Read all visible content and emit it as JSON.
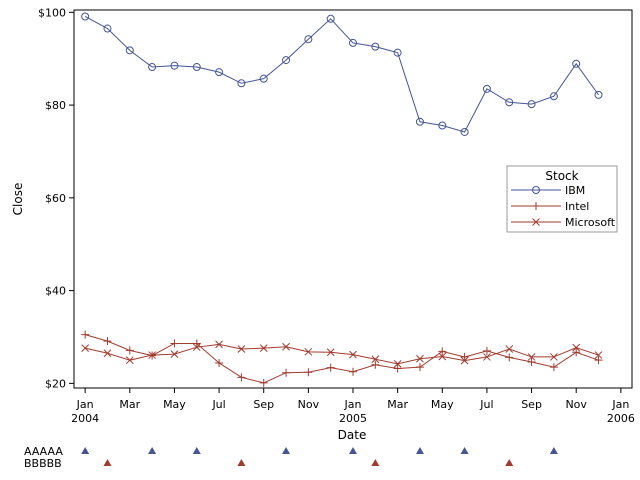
{
  "chart_data": {
    "type": "line",
    "xlabel": "Date",
    "ylabel": "Close",
    "ylim": [
      19,
      100.5
    ],
    "yticks": [
      {
        "value": 20,
        "label": "$20"
      },
      {
        "value": 40,
        "label": "$40"
      },
      {
        "value": 60,
        "label": "$60"
      },
      {
        "value": 80,
        "label": "$80"
      },
      {
        "value": 100,
        "label": "$100"
      }
    ],
    "xlim": [
      -0.5,
      24.5
    ],
    "xticks": [
      {
        "pos": 0,
        "label": "Jan",
        "year": "2004"
      },
      {
        "pos": 2,
        "label": "Mar",
        "year": ""
      },
      {
        "pos": 4,
        "label": "May",
        "year": ""
      },
      {
        "pos": 6,
        "label": "Jul",
        "year": ""
      },
      {
        "pos": 8,
        "label": "Sep",
        "year": ""
      },
      {
        "pos": 10,
        "label": "Nov",
        "year": ""
      },
      {
        "pos": 12,
        "label": "Jan",
        "year": "2005"
      },
      {
        "pos": 14,
        "label": "Mar",
        "year": ""
      },
      {
        "pos": 16,
        "label": "May",
        "year": ""
      },
      {
        "pos": 18,
        "label": "Jul",
        "year": ""
      },
      {
        "pos": 20,
        "label": "Sep",
        "year": ""
      },
      {
        "pos": 22,
        "label": "Nov",
        "year": ""
      },
      {
        "pos": 24,
        "label": "Jan",
        "year": "2006"
      }
    ],
    "x": [
      0,
      1,
      2,
      3,
      4,
      5,
      6,
      7,
      8,
      9,
      10,
      11,
      12,
      13,
      14,
      15,
      16,
      17,
      18,
      19,
      20,
      21,
      22,
      23
    ],
    "series": [
      {
        "name": "IBM",
        "color": "#445694",
        "marker": "circle",
        "values": [
          99.1,
          96.5,
          91.8,
          88.2,
          88.5,
          88.2,
          87.1,
          84.7,
          85.7,
          89.7,
          94.2,
          98.6,
          93.4,
          92.6,
          91.3,
          76.4,
          75.6,
          74.2,
          83.5,
          80.6,
          80.2,
          81.9,
          88.9,
          82.2
        ]
      },
      {
        "name": "Intel",
        "color": "#A23A2E",
        "marker": "plus",
        "values": [
          30.5,
          29.1,
          27.1,
          26.0,
          28.6,
          28.6,
          24.4,
          21.3,
          20.1,
          22.3,
          22.4,
          23.4,
          22.5,
          24.0,
          23.2,
          23.5,
          26.9,
          25.7,
          27.0,
          25.6,
          24.6,
          23.5,
          26.7,
          25.0
        ]
      },
      {
        "name": "Microsoft",
        "color": "#A23A2E",
        "marker": "x",
        "values": [
          27.6,
          26.5,
          25.0,
          26.1,
          26.3,
          27.8,
          28.4,
          27.4,
          27.6,
          27.9,
          26.8,
          26.7,
          26.2,
          25.2,
          24.2,
          25.3,
          25.8,
          24.9,
          25.7,
          27.4,
          25.7,
          25.7,
          27.7,
          26.1
        ]
      }
    ],
    "legend": {
      "title": "Stock",
      "position": "right"
    },
    "annotation_rows": [
      {
        "label": "AAAAA",
        "color": "#445694",
        "positions": [
          0,
          3,
          5,
          9,
          12,
          15,
          17,
          21
        ]
      },
      {
        "label": "BBBBB",
        "color": "#A23A2E",
        "positions": [
          1,
          7,
          13,
          19
        ]
      }
    ]
  }
}
